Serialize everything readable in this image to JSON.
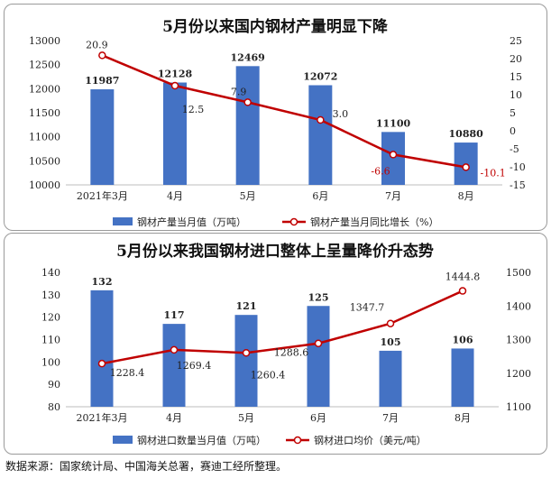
{
  "chart_data": [
    {
      "type": "bar",
      "title": "5月份以来国内钢材产量明显下降",
      "categories": [
        "2021年3月",
        "4月",
        "5月",
        "6月",
        "7月",
        "8月"
      ],
      "series": [
        {
          "name": "钢材产量当月值（万吨）",
          "type": "bar",
          "axis": "left",
          "values": [
            11987,
            12128,
            12469,
            12072,
            11100,
            10880
          ],
          "labels": [
            "11987",
            "12128",
            "12469",
            "12072",
            "11100",
            "10880"
          ]
        },
        {
          "name": "钢材产量当月同比增长（%）",
          "type": "line",
          "axis": "right",
          "values": [
            20.9,
            12.5,
            7.9,
            3.0,
            -6.6,
            -10.1
          ],
          "labels": [
            "20.9",
            "12.5",
            "7.9",
            "3.0",
            "-6.6",
            "-10.1"
          ]
        }
      ],
      "ylim_left": [
        10000,
        13000
      ],
      "yticks_left": [
        10000,
        10500,
        11000,
        11500,
        12000,
        12500,
        13000
      ],
      "ylim_right": [
        -15,
        25
      ],
      "yticks_right": [
        -15,
        -10,
        -5,
        0,
        5,
        10,
        15,
        20,
        25
      ],
      "legend": "bottom",
      "colors": {
        "bar": "#4472c4",
        "line": "#c00000",
        "negative_label": "#c00000"
      }
    },
    {
      "type": "bar",
      "title": "5月份以来我国钢材进口整体上呈量降价升态势",
      "categories": [
        "2021年3月",
        "4月",
        "5月",
        "6月",
        "7月",
        "8月"
      ],
      "series": [
        {
          "name": "钢材进口数量当月值（万吨）",
          "type": "bar",
          "axis": "left",
          "values": [
            132,
            117,
            121,
            125,
            105,
            106
          ],
          "labels": [
            "132",
            "117",
            "121",
            "125",
            "105",
            "106"
          ]
        },
        {
          "name": "钢材进口均价（美元/吨）",
          "type": "line",
          "axis": "right",
          "values": [
            1228.4,
            1269.4,
            1260.4,
            1288.6,
            1347.7,
            1444.8
          ],
          "labels": [
            "1228.4",
            "1269.4",
            "1260.4",
            "1288.6",
            "1347.7",
            "1444.8"
          ]
        }
      ],
      "ylim_left": [
        80,
        140
      ],
      "yticks_left": [
        80,
        90,
        100,
        110,
        120,
        130,
        140
      ],
      "ylim_right": [
        1100,
        1500
      ],
      "yticks_right": [
        1100,
        1200,
        1300,
        1400,
        1500
      ],
      "legend": "bottom",
      "colors": {
        "bar": "#4472c4",
        "line": "#c00000"
      }
    }
  ],
  "footer": "数据来源：国家统计局、中国海关总署，赛迪工经所整理。"
}
